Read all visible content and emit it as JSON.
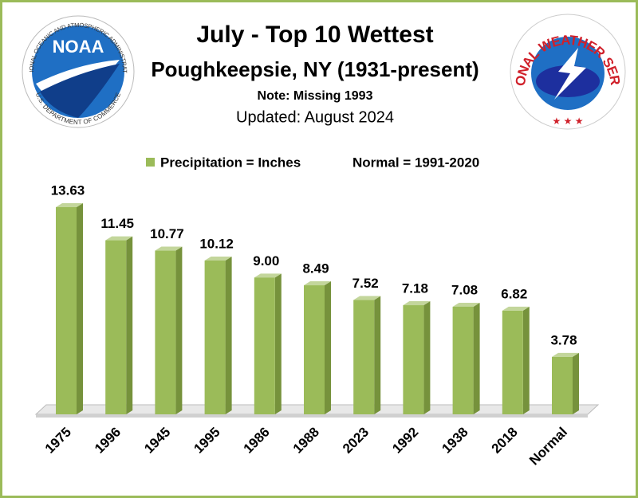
{
  "chart_data": {
    "type": "bar",
    "title": "July - Top 10 Wettest",
    "subtitle": "Poughkeepsie, NY (1931-present)",
    "note": "Note: Missing 1993",
    "updated": "Updated:  August 2024",
    "legend_note": "Normal = 1991-2020",
    "categories": [
      "1975",
      "1996",
      "1945",
      "1995",
      "1986",
      "1988",
      "2023",
      "1992",
      "1938",
      "2018",
      "Normal"
    ],
    "series": [
      {
        "name": "Precipitation = Inches",
        "color": "#9bbb59",
        "values": [
          13.63,
          11.45,
          10.77,
          10.12,
          9.0,
          8.49,
          7.52,
          7.18,
          7.08,
          6.82,
          3.78
        ],
        "value_labels": [
          "13.63",
          "11.45",
          "10.77",
          "10.12",
          "9.00",
          "8.49",
          "7.52",
          "7.18",
          "7.08",
          "6.82",
          "3.78"
        ]
      }
    ],
    "logos": {
      "noaa": {
        "name": "NOAA",
        "ring_top": "NATIONAL OCEANIC AND ATMOSPHERIC ADMINISTRATION",
        "ring_bottom": "U.S. DEPARTMENT OF COMMERCE"
      },
      "nws": {
        "ring": "NATIONAL WEATHER SERVICE"
      }
    }
  }
}
